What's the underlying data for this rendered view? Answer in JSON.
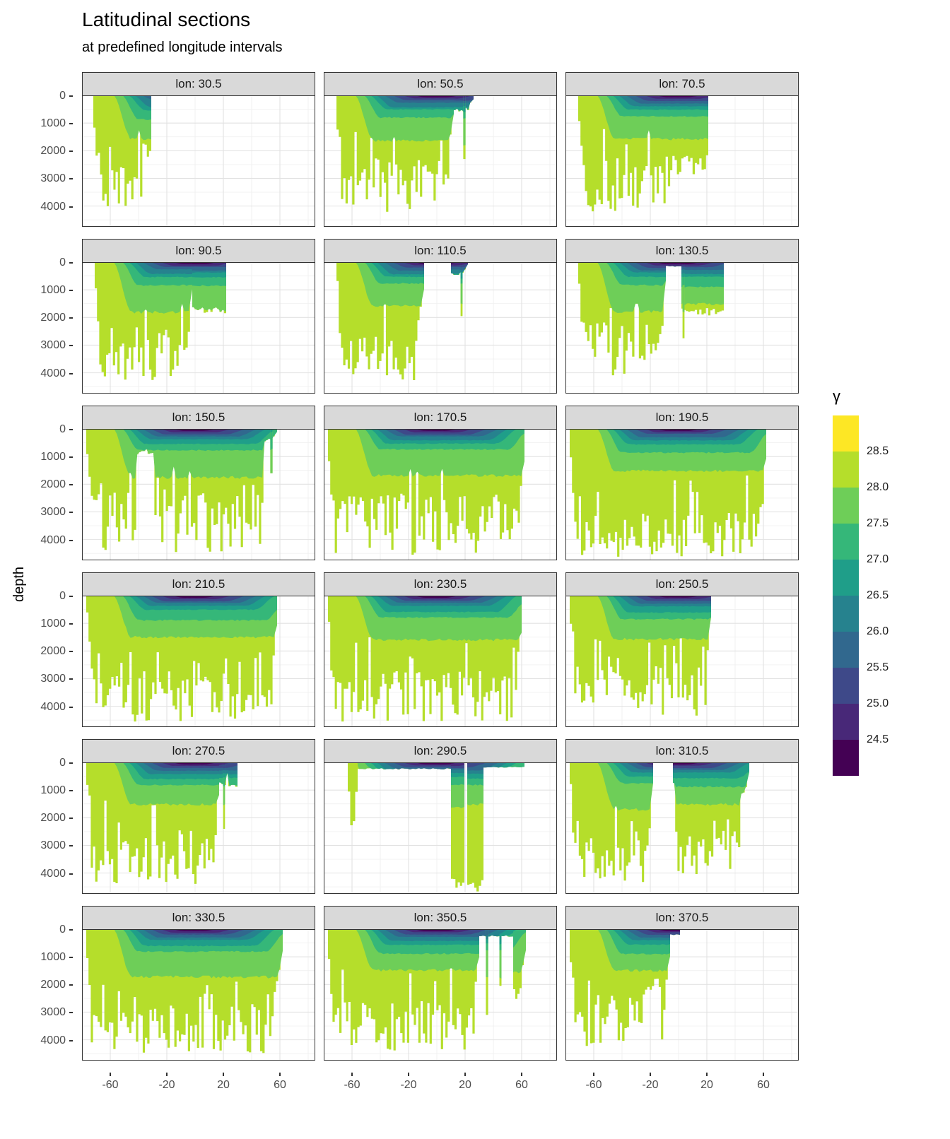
{
  "title": "Latitudinal sections",
  "subtitle": "at predefined longitude intervals",
  "axes": {
    "y_label": "depth",
    "y_ticks": [
      "0",
      "1000",
      "2000",
      "3000",
      "4000"
    ],
    "y_tick_values": [
      0,
      1000,
      2000,
      3000,
      4000
    ],
    "y_minor_values": [
      500,
      1500,
      2500,
      3500,
      4500
    ],
    "x_ticks": [
      "-60",
      "-20",
      "20",
      "60"
    ],
    "x_tick_values": [
      -60,
      -20,
      20,
      60
    ],
    "x_minor_values": [
      -40,
      0,
      40,
      80
    ]
  },
  "legend": {
    "title": "γ",
    "labels": [
      "28.5",
      "28.0",
      "27.5",
      "27.0",
      "26.5",
      "26.0",
      "25.5",
      "25.0",
      "24.5"
    ],
    "colors": [
      "#fde725",
      "#b5de2b",
      "#6ece58",
      "#35b779",
      "#1f9e89",
      "#26828e",
      "#31688e",
      "#3e4989",
      "#482878",
      "#440154"
    ]
  },
  "chart_data": {
    "type": "area",
    "description": "Filled-contour latitudinal ocean sections of neutral density (gamma) versus depth, faceted by longitude",
    "x_domain": [
      -80,
      85
    ],
    "y_domain": [
      0,
      4750
    ],
    "gamma_levels": [
      24.5,
      25.0,
      25.5,
      26.0,
      26.5,
      27.0,
      27.5,
      28.0,
      28.5
    ],
    "interface_depths_equator": [
      70,
      120,
      190,
      280,
      400,
      560,
      820,
      1650
    ],
    "south_outcrop_lat": [
      -18,
      -26,
      -33,
      -39,
      -44,
      -48,
      -52,
      -58
    ],
    "north_outcrop_lat": [
      18,
      28,
      38,
      46,
      52,
      58,
      66,
      78
    ],
    "facets": [
      {
        "label": "lon: 30.5",
        "chunks": [
          {
            "x0": -72,
            "x1": -31,
            "floor": 4300,
            "over": [
              [
                -37,
                -31,
                2000
              ]
            ],
            "t1": false
          }
        ]
      },
      {
        "label": "lon: 50.5",
        "chunks": [
          {
            "x0": -71,
            "x1": 12,
            "floor": 4300
          },
          {
            "x0": 12,
            "x1": 26,
            "floor": 600,
            "rough": 0.3,
            "t0": false
          }
        ],
        "spikes": [
          [
            19.5,
            1.6,
            2300
          ]
        ]
      },
      {
        "label": "lon: 70.5",
        "chunks": [
          {
            "x0": -71,
            "x1": 21,
            "floor": 4200,
            "over": [
              [
                -5,
                21,
                2500
              ]
            ],
            "t1": false
          }
        ]
      },
      {
        "label": "lon: 90.5",
        "chunks": [
          {
            "x0": -71,
            "x1": -2,
            "floor": 4400
          },
          {
            "x0": -2,
            "x1": 22,
            "floor": 1850,
            "rough": 0.12,
            "t0": false,
            "t1": false
          }
        ]
      },
      {
        "label": "lon: 110.5",
        "chunks": [
          {
            "x0": -71,
            "x1": -9,
            "floor": 4300
          },
          {
            "x0": 10,
            "x1": 22,
            "floor": 500,
            "rough": 0.3,
            "t0": false
          }
        ],
        "spikes": [
          [
            17.5,
            1.4,
            1950
          ]
        ]
      },
      {
        "label": "lon: 130.5",
        "chunks": [
          {
            "x0": -71,
            "x1": -9,
            "floor": 4100
          },
          {
            "x0": 2,
            "x1": 32,
            "floor": 1950,
            "rough": 0.15,
            "t0": false,
            "t1": false
          }
        ],
        "spikes": [
          [
            3.5,
            1.4,
            2750
          ]
        ],
        "strips": [
          [
            -9,
            2,
            150
          ]
        ]
      },
      {
        "label": "lon: 150.5",
        "chunks": [
          {
            "x0": -77,
            "x1": 58,
            "floor": 4450,
            "over": [
              [
                -41,
                -29,
                800
              ],
              [
                48,
                58,
                400
              ]
            ]
          }
        ],
        "spikes": [
          [
            54,
            1.6,
            1600
          ]
        ]
      },
      {
        "label": "lon: 170.5",
        "chunks": [
          {
            "x0": -77,
            "x1": 62,
            "floor": 4550,
            "over": [
              [
                -26,
                -20,
                2600
              ]
            ]
          }
        ]
      },
      {
        "label": "lon: 190.5",
        "chunks": [
          {
            "x0": -77,
            "x1": 62,
            "floor": 4650,
            "rough": 0.35
          }
        ]
      },
      {
        "label": "lon: 210.5",
        "chunks": [
          {
            "x0": -77,
            "x1": 58,
            "floor": 4550,
            "rough": 0.4
          }
        ]
      },
      {
        "label": "lon: 230.5",
        "chunks": [
          {
            "x0": -77,
            "x1": 60,
            "floor": 4550,
            "rough": 0.4
          }
        ]
      },
      {
        "label": "lon: 250.5",
        "chunks": [
          {
            "x0": -77,
            "x1": 23,
            "floor": 4400,
            "rough": 0.45
          }
        ]
      },
      {
        "label": "lon: 270.5",
        "chunks": [
          {
            "x0": -77,
            "x1": 17,
            "floor": 4400,
            "rough": 0.45
          },
          {
            "x0": 17,
            "x1": 30,
            "floor": 900,
            "rough": 0.25,
            "t0": false,
            "t1": false
          }
        ],
        "spikes": [
          [
            20.5,
            1.3,
            2400
          ]
        ]
      },
      {
        "label": "lon: 290.5",
        "chunks": [
          {
            "x0": -63,
            "x1": -56,
            "floor": 3900,
            "rough": 0.15
          },
          {
            "x0": 10,
            "x1": 19.5,
            "floor": 4650,
            "rough": 0.1,
            "t0": false,
            "t1": false
          },
          {
            "x0": 21.5,
            "x1": 33,
            "floor": 4700,
            "rough": 0.1,
            "t0": false,
            "t1": false
          }
        ],
        "strips": [
          [
            -56,
            10,
            230
          ],
          [
            33,
            62,
            170
          ]
        ]
      },
      {
        "label": "lon: 310.5",
        "chunks": [
          {
            "x0": -77,
            "x1": -18,
            "floor": 4400,
            "rough": 0.45
          },
          {
            "x0": -4,
            "x1": 50,
            "floor": 4400,
            "rough": 0.45,
            "over": [
              [
                43,
                50,
                1300
              ]
            ]
          }
        ]
      },
      {
        "label": "lon: 330.5",
        "chunks": [
          {
            "x0": -77,
            "x1": 62,
            "floor": 4500,
            "rough": 0.4,
            "over": [
              [
                55,
                62,
                2400
              ]
            ]
          }
        ]
      },
      {
        "label": "lon: 350.5",
        "chunks": [
          {
            "x0": -77,
            "x1": 30,
            "floor": 4400,
            "rough": 0.42
          },
          {
            "x0": 54,
            "x1": 63,
            "floor": 2700,
            "rough": 0.2,
            "t0": false
          }
        ],
        "strips": [
          [
            30,
            54,
            250
          ]
        ],
        "spikes": [
          [
            35.5,
            1.6,
            3100
          ],
          [
            45,
            1.5,
            2050
          ]
        ]
      },
      {
        "label": "lon: 370.5",
        "chunks": [
          {
            "x0": -77,
            "x1": -6,
            "floor": 4300,
            "rough": 0.45,
            "over": [
              [
                -26,
                -12,
                2100
              ]
            ]
          }
        ],
        "strips": [
          [
            -6,
            1,
            200
          ]
        ]
      }
    ]
  }
}
